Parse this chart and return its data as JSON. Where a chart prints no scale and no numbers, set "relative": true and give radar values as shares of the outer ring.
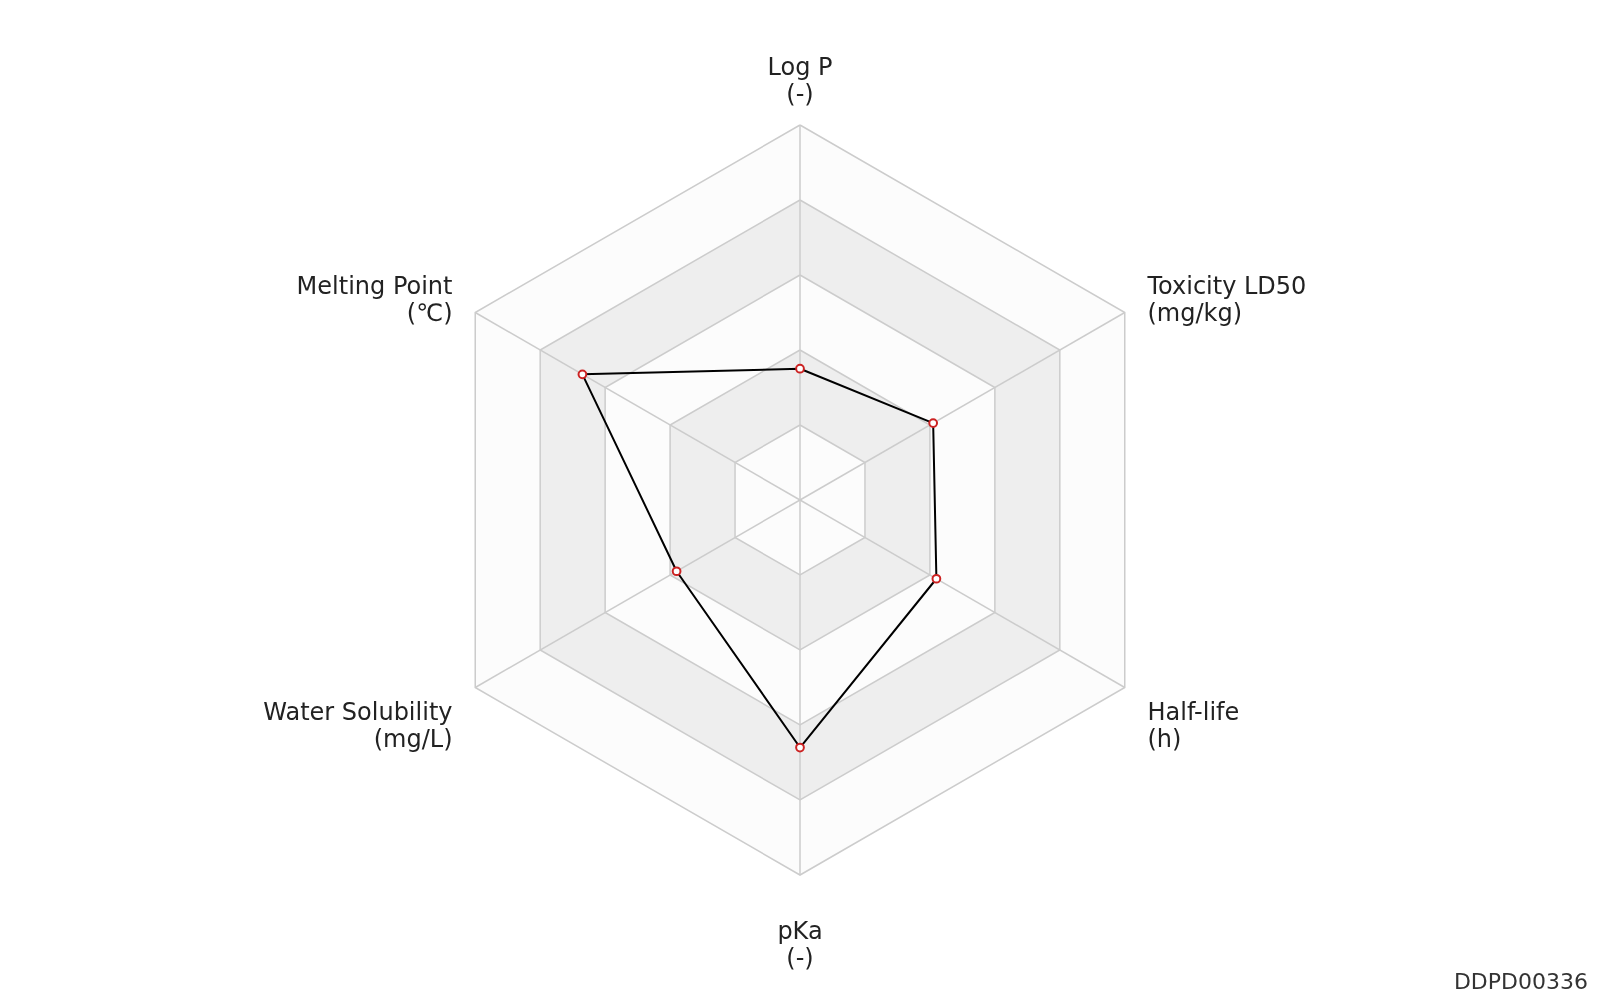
{
  "chart_data": {
    "type": "radar",
    "relative": true,
    "categories": [
      "Log P\n(-)",
      "Toxicity LD50\n(mg/kg)",
      "Half-life\n(h)",
      "pKa\n(-)",
      "Water Solubility\n(mg/L)",
      "Melting Point\n(℃)"
    ],
    "series": [
      {
        "color": "#000000",
        "values": [
          0.35,
          0.41,
          0.42,
          0.66,
          0.38,
          0.67
        ]
      }
    ],
    "grid": true,
    "marker": "circle",
    "line_style": "solid",
    "annotations": [
      "DDPD00336"
    ]
  }
}
